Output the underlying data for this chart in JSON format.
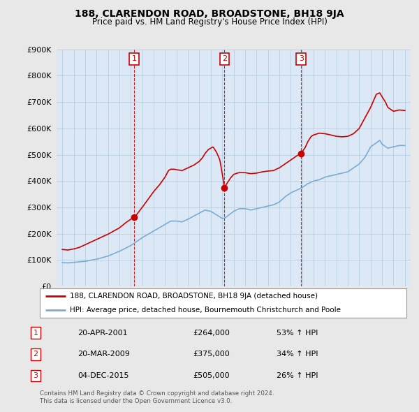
{
  "title": "188, CLARENDON ROAD, BROADSTONE, BH18 9JA",
  "subtitle": "Price paid vs. HM Land Registry's House Price Index (HPI)",
  "red_label": "188, CLARENDON ROAD, BROADSTONE, BH18 9JA (detached house)",
  "blue_label": "HPI: Average price, detached house, Bournemouth Christchurch and Poole",
  "footer_line1": "Contains HM Land Registry data © Crown copyright and database right 2024.",
  "footer_line2": "This data is licensed under the Open Government Licence v3.0.",
  "transactions": [
    {
      "num": "1",
      "date": "20-APR-2001",
      "price": "£264,000",
      "pct": "53% ↑ HPI",
      "year": 2001.3,
      "value": 264000
    },
    {
      "num": "2",
      "date": "20-MAR-2009",
      "price": "£375,000",
      "pct": "34% ↑ HPI",
      "year": 2009.2,
      "value": 375000
    },
    {
      "num": "3",
      "date": "04-DEC-2015",
      "price": "£505,000",
      "pct": "26% ↑ HPI",
      "year": 2015.92,
      "value": 505000
    }
  ],
  "ylim": [
    0,
    900000
  ],
  "xlim_start": 1994.5,
  "xlim_end": 2025.5,
  "bg_color": "#e8e8e8",
  "plot_bg": "#dce8f5",
  "red_color": "#cc0000",
  "blue_color": "#7aadd4",
  "grid_color": "#b8cfe0",
  "dashed_color": "#cc0000",
  "legend_bg": "#ffffff",
  "marker_color": "#cc0000"
}
